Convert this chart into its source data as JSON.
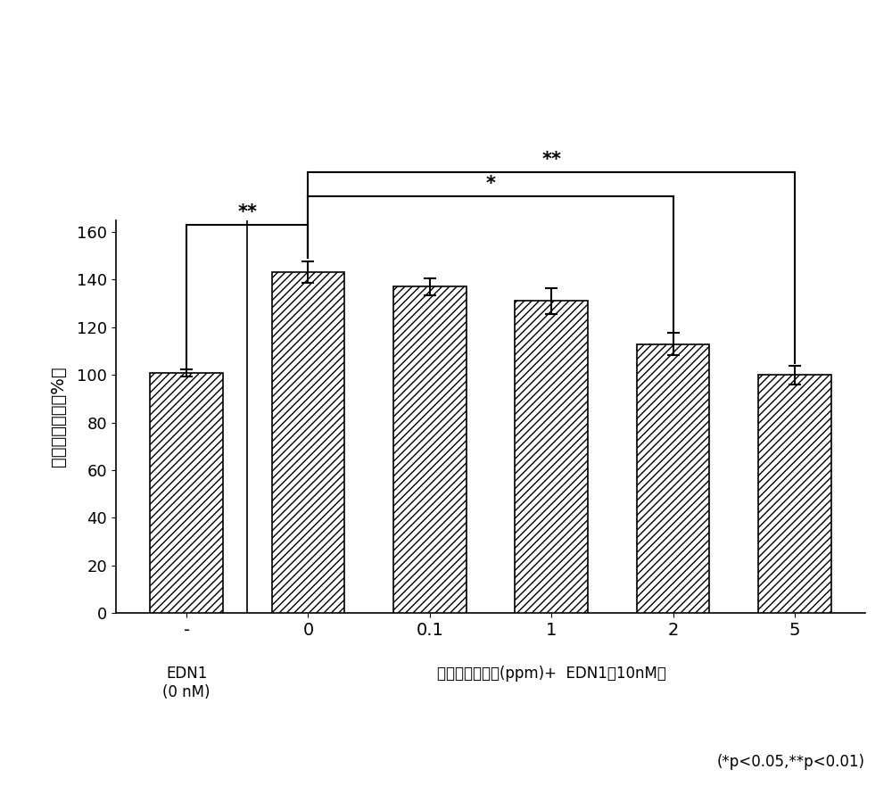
{
  "categories": [
    "-",
    "0",
    "0.1",
    "1",
    "2",
    "5"
  ],
  "values": [
    101,
    143,
    137,
    131,
    113,
    100
  ],
  "errors": [
    1.5,
    4.5,
    3.5,
    5.5,
    4.5,
    4.0
  ],
  "ylabel": "酬氨酸酶含量（%）",
  "ylim": [
    0,
    165
  ],
  "yticks": [
    0,
    20,
    40,
    60,
    80,
    100,
    120,
    140,
    160
  ],
  "xlabel_main": "高山黄芩提取物(ppm)+  EDN1（10nM）",
  "sig_note": "(*p<0.05,**p<0.01)",
  "hatch_pattern": "////",
  "bar_facecolor": "white",
  "bar_edgecolor": "black",
  "bar_width": 0.6,
  "figsize": [
    10.0,
    8.81
  ],
  "dpi": 100,
  "sig1_label": "**",
  "sig2_label": "*",
  "sig3_label": "**",
  "font_path": null
}
